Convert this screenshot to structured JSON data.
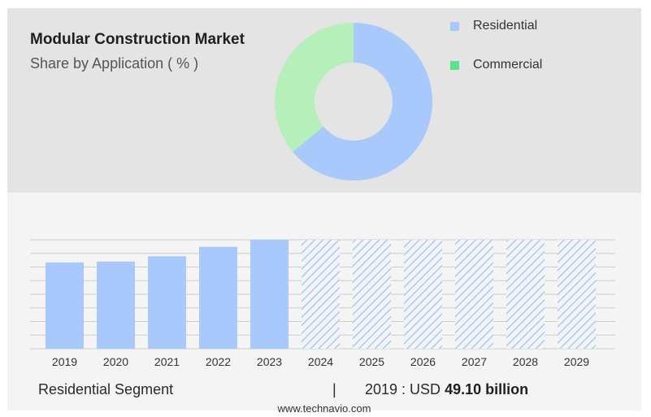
{
  "header": {
    "title": "Modular Construction Market",
    "subtitle": "Share by Application ( % )"
  },
  "legend": [
    {
      "label": "Residential",
      "color": "#a9c8fb"
    },
    {
      "label": "Commercial",
      "color": "#5fe08a"
    }
  ],
  "chart_data": [
    {
      "type": "pie",
      "donut": true,
      "categories": [
        "Residential",
        "Commercial"
      ],
      "values": [
        64,
        36
      ],
      "colors": [
        "#a9c8fb",
        "#b5efb9"
      ]
    },
    {
      "type": "bar",
      "categories": [
        "2019",
        "2020",
        "2021",
        "2022",
        "2023",
        "2024",
        "2025",
        "2026",
        "2027",
        "2028",
        "2029"
      ],
      "values": [
        49.1,
        49.6,
        52.6,
        58.0,
        62.0,
        62.0,
        62.0,
        62.0,
        62.0,
        62.0,
        62.0
      ],
      "forecast_from": "2024",
      "ylim": [
        0,
        62
      ],
      "grid": true,
      "colors": {
        "actual": "#a9c8fb",
        "forecast_hatch": "#a9c8fb"
      }
    }
  ],
  "footer": {
    "segment_label": "Residential Segment",
    "separator": "|",
    "value_prefix": "2019 : USD",
    "value_bold": "49.10 billion"
  },
  "source": "www.technavio.com"
}
